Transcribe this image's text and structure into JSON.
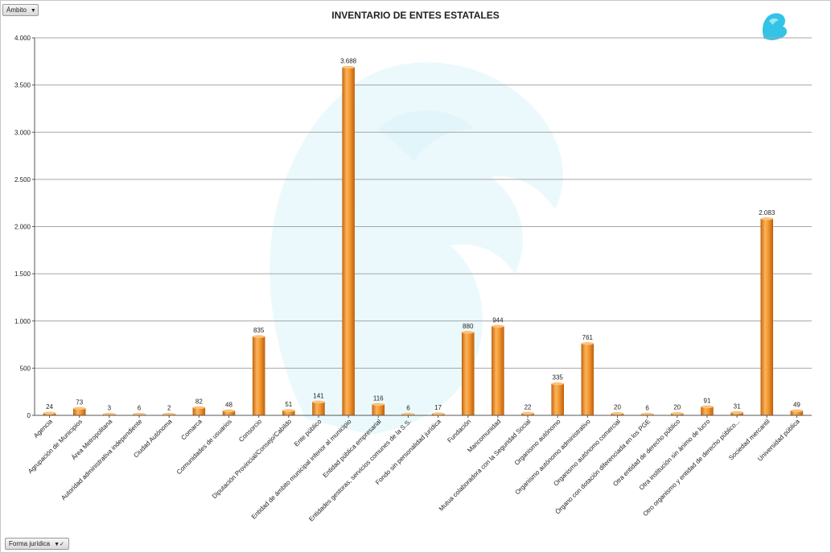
{
  "controls": {
    "ambito_label": "Ámbito",
    "forma_label": "Forma jurídica"
  },
  "icons": {
    "dropdown": "chevron-down-icon",
    "filter": "filter-icon",
    "logo": "eagle-logo-icon"
  },
  "colors": {
    "bar": "#f0902a",
    "bar_dark": "#c96a10",
    "bar_light": "#fbc27a",
    "grid": "#a6a6a6",
    "watermark": "#e6f7fb",
    "logo": "#33c3e6"
  },
  "chart_data": {
    "type": "bar",
    "title": "INVENTARIO DE ENTES ESTATALES",
    "xlabel": "",
    "ylabel": "",
    "ylim": [
      0,
      4000
    ],
    "yticks": [
      0,
      500,
      1000,
      1500,
      2000,
      2500,
      3000,
      3500,
      4000
    ],
    "ytick_labels": [
      "0",
      "500",
      "1.000",
      "1.500",
      "2.000",
      "2.500",
      "3.000",
      "3.500",
      "4.000"
    ],
    "grid": true,
    "legend": "none",
    "categories": [
      "Agencia",
      "Agrupación de Municipios",
      "Área Metropolitana",
      "Autoridad administrativa independiente",
      "Ciudad Autónoma",
      "Comarca",
      "Comunidades de usuarios",
      "Consorcio",
      "Diputación Provincial/Consejo/Cabildo",
      "Ente público",
      "Entidad de ámbito municipal inferior al municipio",
      "Entidad pública empresarial",
      "Entidades gestoras, servicios comunes de la S.S.",
      "Fondo sin personalidad jurídica",
      "Fundación",
      "Mancomunidad",
      "Mutua colaboradora con la Seguridad Social",
      "Organismo autónomo",
      "Organismo autónomo administrativo",
      "Organismo autónomo comercial",
      "Órgano con dotación diferenciada en los PGE",
      "Otra entidad de derecho público",
      "Otra institución sin ánimo de lucro",
      "Otro organismo y entidad de derecho público...",
      "Sociedad mercantil",
      "Universidad pública"
    ],
    "values": [
      24,
      73,
      3,
      6,
      2,
      82,
      48,
      835,
      51,
      141,
      3688,
      116,
      6,
      17,
      880,
      944,
      22,
      335,
      761,
      20,
      6,
      20,
      91,
      31,
      2083,
      49
    ],
    "value_labels": [
      "24",
      "73",
      "3",
      "6",
      "2",
      "82",
      "48",
      "835",
      "51",
      "141",
      "3.688",
      "116",
      "6",
      "17",
      "880",
      "944",
      "22",
      "335",
      "761",
      "20",
      "6",
      "20",
      "91",
      "31",
      "2.083",
      "49"
    ]
  }
}
